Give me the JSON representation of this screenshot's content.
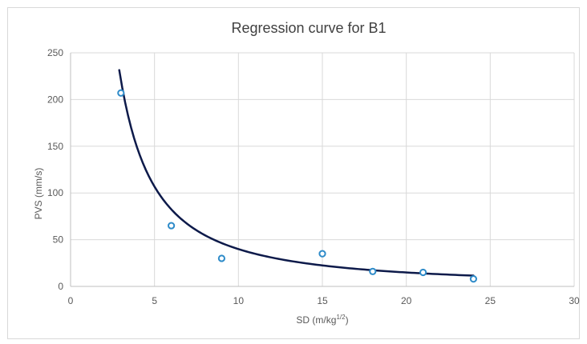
{
  "chart_data": {
    "type": "scatter",
    "title": "Regression curve for B1",
    "xlabel": "SD (m/kg",
    "xlabel_sup": "1/2",
    "xlabel_end": ")",
    "ylabel": "PVS (mm/s)",
    "xlim": [
      0,
      30
    ],
    "ylim": [
      0,
      250
    ],
    "xticks": [
      0,
      5,
      10,
      15,
      20,
      25,
      30
    ],
    "yticks": [
      0,
      50,
      100,
      150,
      200,
      250
    ],
    "xtick_labels": [
      "0",
      "5",
      "10",
      "15",
      "20",
      "25",
      "30"
    ],
    "ytick_labels": [
      "0",
      "50",
      "100",
      "150",
      "200",
      "250"
    ],
    "grid": true,
    "series": [
      {
        "kind": "points",
        "x": [
          3,
          6,
          9,
          15,
          18,
          21,
          24
        ],
        "y": [
          207,
          65,
          30,
          35,
          16,
          15,
          8
        ],
        "color": "#2e8bc9"
      },
      {
        "kind": "trendline",
        "model": "power",
        "coef": 1050,
        "exponent": -1.42,
        "x_range": [
          2.9,
          24
        ],
        "color": "#0d1a4a"
      }
    ],
    "colors": {
      "grid": "#d9d9d9",
      "axis": "#bfbfbf",
      "text": "#595959",
      "title": "#404040"
    }
  }
}
